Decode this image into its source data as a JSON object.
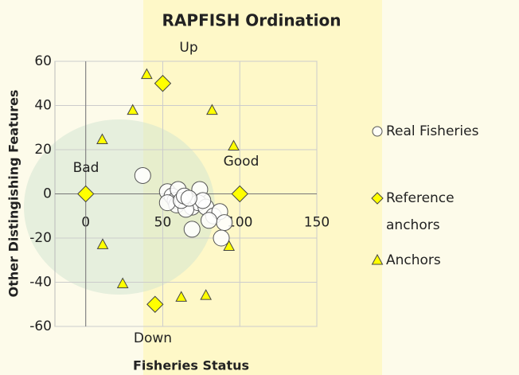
{
  "chart_data": {
    "type": "scatter",
    "title": "RAPFISH Ordination",
    "x_label": "Fisheries Status",
    "y_label": "Other Distingishing Features",
    "xlim": [
      -20,
      150
    ],
    "xticks": [
      0,
      50,
      100,
      150
    ],
    "ylim": [
      -60,
      60
    ],
    "yticks": [
      -60,
      -40,
      -20,
      0,
      20,
      40,
      60
    ],
    "grid": true,
    "annotations": [
      "Up",
      "Bad",
      "Good",
      "Down"
    ],
    "series": [
      {
        "name": "Real Fisheries",
        "color": "#ffffff",
        "marker": "circle",
        "x": [
          37,
          53,
          56,
          58,
          59,
          53,
          60,
          74,
          69,
          73,
          69,
          78,
          83,
          87,
          90,
          88,
          65,
          62,
          64,
          76,
          80,
          67
        ],
        "y": [
          8.3,
          1,
          -1,
          -3,
          -5,
          -4,
          2,
          2,
          -6,
          -4,
          -16,
          -6,
          -10,
          -8,
          -13,
          -20,
          -7,
          -3,
          -1,
          -3,
          -12,
          -2
        ]
      },
      {
        "name": "Reference anchors",
        "color": "#ffff00",
        "marker": "diamond",
        "x": [
          0,
          100,
          50,
          45
        ],
        "y": [
          0,
          0,
          50,
          -50
        ]
      },
      {
        "name": "Anchors",
        "color": "#ffff00",
        "marker": "triangle",
        "x": [
          39.6,
          30.5,
          10.7,
          82,
          96,
          11,
          24,
          62,
          78,
          93
        ],
        "y": [
          54,
          37.8,
          24.5,
          37.8,
          21.6,
          -23,
          -40.7,
          -46.8,
          -46,
          -23.8
        ]
      }
    ]
  }
}
